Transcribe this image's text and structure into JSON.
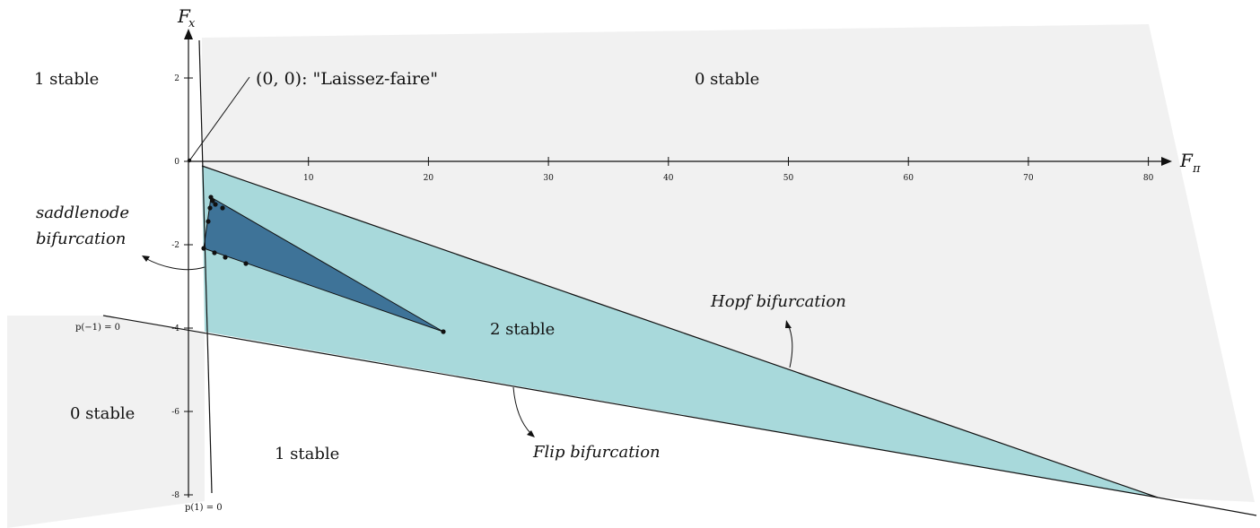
{
  "axes": {
    "x_title": "F",
    "x_subscript": "π",
    "y_title": "F",
    "y_subscript": "x",
    "x_ticks": [
      "10",
      "20",
      "30",
      "40",
      "50",
      "60",
      "70",
      "80"
    ],
    "y_ticks": [
      "2",
      "0",
      "-2",
      "-4",
      "-6",
      "-8"
    ]
  },
  "regions": {
    "top_left": "1 stable",
    "top_right": "0 stable",
    "middle": "2 stable",
    "bottom_left": "0 stable",
    "bottom_center": "1 stable"
  },
  "annotations": {
    "laissez_faire": "(0, 0):  \"Laissez-faire\"",
    "saddlenode_line1": "saddlenode",
    "saddlenode_line2": "bifurcation",
    "hopf": "Hopf bifurcation",
    "flip": "Flip bifurcation",
    "p_minus_one": "p(−1) = 0",
    "p_one": "p(1) = 0"
  },
  "colors": {
    "light_gray": "#f1f1f1",
    "teal": "#a8d9db",
    "dark_blue": "#3e7398",
    "line": "#111111"
  }
}
